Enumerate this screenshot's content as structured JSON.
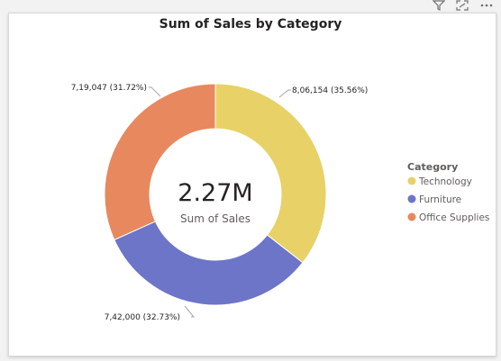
{
  "header": {
    "filter_icon": "filter-icon",
    "focus_icon": "focus-mode-icon",
    "more_icon": "more-options-icon"
  },
  "chart_data": {
    "type": "pie",
    "variant": "donut",
    "title": "Sum of Sales by Category",
    "center_value": "2.27M",
    "center_label": "Sum of Sales",
    "legend_title": "Category",
    "legend_position": "right",
    "categories": [
      "Technology",
      "Furniture",
      "Office Supplies"
    ],
    "values": [
      806154,
      742000,
      719047
    ],
    "data_labels": [
      "8,06,154 (35.56%)",
      "7,42,000 (32.73%)",
      "7,19,047 (31.72%)"
    ],
    "colors": [
      "#E8D166",
      "#6C75C7",
      "#E8885E"
    ]
  }
}
